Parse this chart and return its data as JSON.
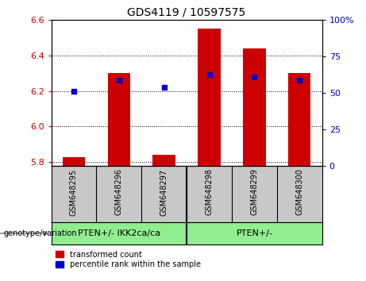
{
  "title": "GDS4119 / 10597575",
  "samples": [
    "GSM648295",
    "GSM648296",
    "GSM648297",
    "GSM648298",
    "GSM648299",
    "GSM648300"
  ],
  "red_values": [
    5.83,
    6.3,
    5.84,
    6.55,
    6.44,
    6.3
  ],
  "blue_values": [
    6.2,
    6.26,
    6.22,
    6.29,
    6.28,
    6.26
  ],
  "ylim_left": [
    5.78,
    6.6
  ],
  "ylim_right": [
    0,
    100
  ],
  "yticks_left": [
    5.8,
    6.0,
    6.2,
    6.4,
    6.6
  ],
  "yticks_right": [
    0,
    25,
    50,
    75,
    100
  ],
  "ytick_labels_right": [
    "0",
    "25",
    "50",
    "75",
    "100%"
  ],
  "group1_label": "PTEN+/- IKK2ca/ca",
  "group2_label": "PTEN+/-",
  "group_boundary": 2.5,
  "group1_color": "#90EE90",
  "group2_color": "#90EE90",
  "left_color": "#CC0000",
  "right_color": "#0000CC",
  "bar_bottom": 5.78,
  "bar_width": 0.5,
  "legend_red_label": "transformed count",
  "legend_blue_label": "percentile rank within the sample",
  "xlabel_label": "genotype/variation",
  "tick_color_left": "#CC0000",
  "tick_color_right": "#0000CC",
  "background_sample": "#C8C8C8",
  "title_fontsize": 10,
  "tick_fontsize": 8,
  "sample_fontsize": 7,
  "group_fontsize": 8,
  "legend_fontsize": 7
}
